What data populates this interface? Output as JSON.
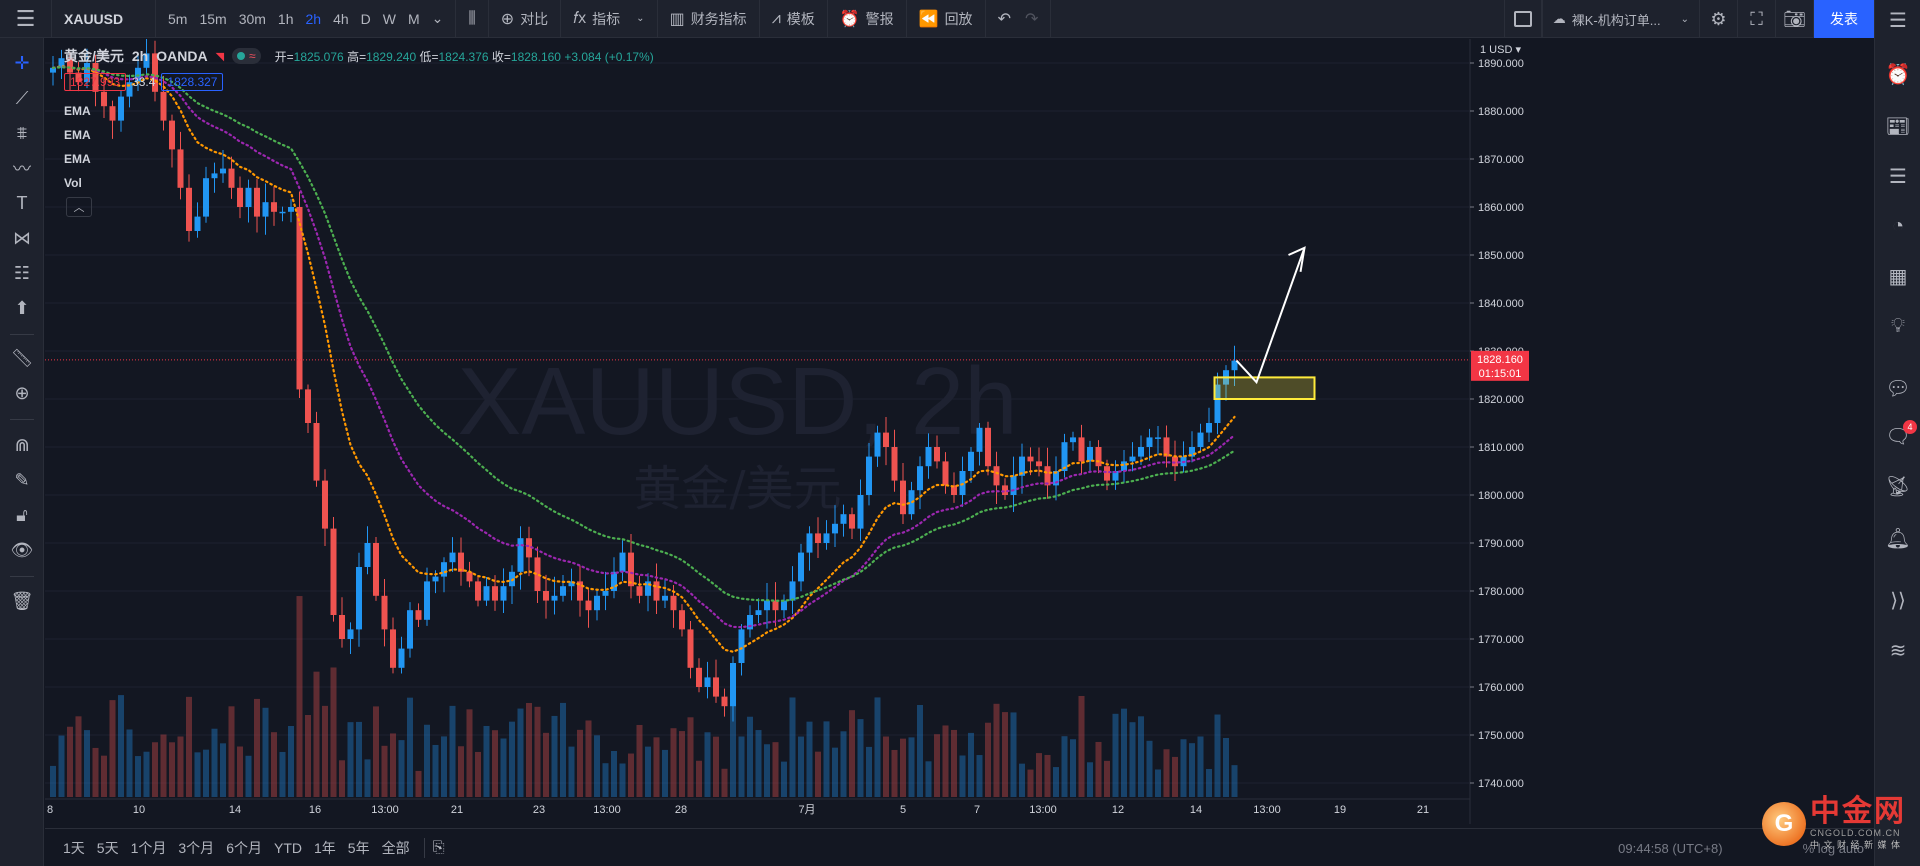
{
  "toolbar": {
    "symbol": "XAUUSD",
    "intervals": [
      "5m",
      "15m",
      "30m",
      "1h",
      "2h",
      "4h",
      "D",
      "W",
      "M"
    ],
    "active_interval": "2h",
    "compare_label": "对比",
    "indicators_label": "指标",
    "financials_label": "财务指标",
    "templates_label": "模板",
    "alert_label": "警报",
    "replay_label": "回放",
    "layout_name": "裸K-机构订单...",
    "publish_label": "发表"
  },
  "legend": {
    "title": "黄金/美元",
    "interval": "2h",
    "exchange": "OANDA",
    "open_label": "开=",
    "open": "1825.076",
    "high_label": "高=",
    "high": "1829.240",
    "low_label": "低=",
    "low": "1824.376",
    "close_label": "收=",
    "close": "1828.160",
    "change": "+3.084 (+0.17%)",
    "bid": "1827.993",
    "spread": "33.4",
    "ask": "1828.327",
    "indicators": [
      "EMA",
      "EMA",
      "EMA",
      "Vol"
    ]
  },
  "price_axis": {
    "currency": "1 USD",
    "ticks": [
      "1890.000",
      "1880.000",
      "1870.000",
      "1860.000",
      "1850.000",
      "1840.000",
      "1830.000",
      "1820.000",
      "1810.000",
      "1800.000",
      "1790.000",
      "1780.000",
      "1770.000",
      "1760.000",
      "1750.000",
      "1740.000"
    ],
    "current_price": "1828.160",
    "countdown": "01:15:01"
  },
  "time_axis": {
    "ticks": [
      "8",
      "10",
      "14",
      "16",
      "13:00",
      "21",
      "23",
      "13:00",
      "28",
      "7月",
      "5",
      "7",
      "13:00",
      "12",
      "14",
      "13:00",
      "19",
      "21"
    ]
  },
  "watermark": {
    "symbol": "XAUUSD, 2h",
    "name": "黄金/美元"
  },
  "bottom": {
    "ranges": [
      "1天",
      "5天",
      "1个月",
      "3个月",
      "6个月",
      "YTD",
      "1年",
      "5年",
      "全部"
    ],
    "time": "09:44:58 (UTC+8)",
    "options": "% log auto"
  },
  "logo": {
    "name": "中金网",
    "url": "CNGOLD.COM.CN",
    "tagline": "中 文 财 经 新 媒 体"
  },
  "right_sidebar": {
    "badge": "4"
  },
  "colors": {
    "up": "#26a69a",
    "candle_up": "#2196f3",
    "down": "#ef5350",
    "ema_fast": "#ff9800",
    "ema_mid": "#9c27b0",
    "ema_slow": "#4caf50",
    "accent": "#2962ff"
  },
  "chart_data": {
    "type": "candlestick",
    "y_range": [
      1735,
      1895
    ],
    "close_series": [
      1889,
      1891,
      1888,
      1886,
      1890,
      1884,
      1881,
      1878,
      1883,
      1886,
      1889,
      1892,
      1884,
      1878,
      1872,
      1864,
      1855,
      1858,
      1866,
      1867,
      1868,
      1864,
      1860,
      1864,
      1858,
      1861,
      1859,
      1859,
      1860,
      1822,
      1815,
      1803,
      1793,
      1775,
      1770,
      1772,
      1785,
      1790,
      1779,
      1772,
      1764,
      1768,
      1776,
      1774,
      1782,
      1783,
      1786,
      1788,
      1784,
      1782,
      1778,
      1781,
      1778,
      1781,
      1784,
      1791,
      1787,
      1780,
      1778,
      1779,
      1781,
      1782,
      1778,
      1776,
      1779,
      1780,
      1784,
      1788,
      1781,
      1779,
      1782,
      1778,
      1779,
      1776,
      1772,
      1764,
      1760,
      1762,
      1758,
      1756,
      1765,
      1772,
      1775,
      1776,
      1778,
      1776,
      1778,
      1782,
      1788,
      1792,
      1790,
      1792,
      1794,
      1796,
      1793,
      1800,
      1808,
      1813,
      1810,
      1803,
      1796,
      1801,
      1806,
      1810,
      1807,
      1802,
      1800,
      1805,
      1809,
      1814,
      1806,
      1802,
      1800,
      1804,
      1808,
      1807,
      1806,
      1802,
      1805,
      1811,
      1812,
      1807,
      1810,
      1806,
      1803,
      1805,
      1807,
      1808,
      1810,
      1812,
      1812,
      1808,
      1806,
      1808,
      1810,
      1813,
      1815,
      1823,
      1826,
      1828
    ],
    "ema_fast_label": "EMA",
    "ema_mid_label": "EMA",
    "ema_slow_label": "EMA",
    "annotation": {
      "zone_price_range": [
        1820.0,
        1824.5
      ],
      "arrow_target": "up"
    }
  }
}
